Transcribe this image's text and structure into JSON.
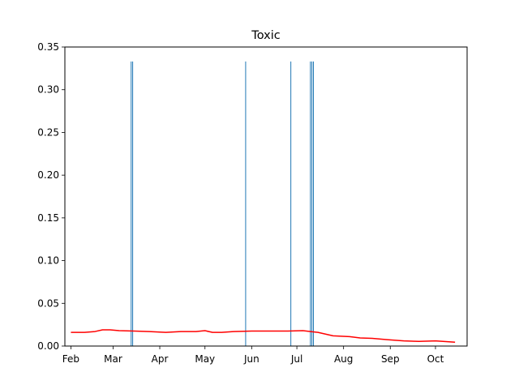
{
  "chart_data": {
    "type": "line",
    "title": "Toxic",
    "xlabel": "",
    "ylabel": "",
    "x_axis": {
      "type": "date",
      "min": "2021-01-28",
      "max": "2021-10-22",
      "ticks": [
        {
          "date": "2021-02-01",
          "label": "Feb"
        },
        {
          "date": "2021-03-01",
          "label": "Mar"
        },
        {
          "date": "2021-04-01",
          "label": "Apr"
        },
        {
          "date": "2021-05-01",
          "label": "May"
        },
        {
          "date": "2021-06-01",
          "label": "Jun"
        },
        {
          "date": "2021-07-01",
          "label": "Jul"
        },
        {
          "date": "2021-08-01",
          "label": "Aug"
        },
        {
          "date": "2021-09-01",
          "label": "Sep"
        },
        {
          "date": "2021-10-01",
          "label": "Oct"
        }
      ]
    },
    "ylim": [
      0,
      0.35
    ],
    "yticks": [
      0.0,
      0.05,
      0.1,
      0.15,
      0.2,
      0.25,
      0.3,
      0.35
    ],
    "ytick_labels": [
      "0.00",
      "0.05",
      "0.10",
      "0.15",
      "0.20",
      "0.25",
      "0.30",
      "0.35"
    ],
    "grid": false,
    "series": [
      {
        "kind": "bars",
        "color": "#1f77b4",
        "points": [
          {
            "x": "2021-03-13",
            "y": 0.333
          },
          {
            "x": "2021-03-14",
            "y": 0.333
          },
          {
            "x": "2021-05-28",
            "y": 0.333
          },
          {
            "x": "2021-06-27",
            "y": 0.333
          },
          {
            "x": "2021-07-10",
            "y": 0.333
          },
          {
            "x": "2021-07-11",
            "y": 0.333
          },
          {
            "x": "2021-07-12",
            "y": 0.333
          }
        ]
      },
      {
        "kind": "line",
        "color": "#ff0000",
        "points": [
          {
            "x": "2021-02-01",
            "y": 0.016
          },
          {
            "x": "2021-02-10",
            "y": 0.016
          },
          {
            "x": "2021-02-17",
            "y": 0.017
          },
          {
            "x": "2021-02-22",
            "y": 0.019
          },
          {
            "x": "2021-02-27",
            "y": 0.019
          },
          {
            "x": "2021-03-05",
            "y": 0.018
          },
          {
            "x": "2021-03-15",
            "y": 0.0175
          },
          {
            "x": "2021-03-25",
            "y": 0.017
          },
          {
            "x": "2021-04-05",
            "y": 0.016
          },
          {
            "x": "2021-04-15",
            "y": 0.017
          },
          {
            "x": "2021-04-25",
            "y": 0.017
          },
          {
            "x": "2021-05-01",
            "y": 0.018
          },
          {
            "x": "2021-05-06",
            "y": 0.016
          },
          {
            "x": "2021-05-12",
            "y": 0.016
          },
          {
            "x": "2021-05-20",
            "y": 0.017
          },
          {
            "x": "2021-06-01",
            "y": 0.0175
          },
          {
            "x": "2021-06-15",
            "y": 0.0175
          },
          {
            "x": "2021-06-25",
            "y": 0.0175
          },
          {
            "x": "2021-07-05",
            "y": 0.018
          },
          {
            "x": "2021-07-10",
            "y": 0.017
          },
          {
            "x": "2021-07-15",
            "y": 0.016
          },
          {
            "x": "2021-07-20",
            "y": 0.014
          },
          {
            "x": "2021-07-25",
            "y": 0.012
          },
          {
            "x": "2021-08-05",
            "y": 0.011
          },
          {
            "x": "2021-08-12",
            "y": 0.0095
          },
          {
            "x": "2021-08-20",
            "y": 0.009
          },
          {
            "x": "2021-08-30",
            "y": 0.0075
          },
          {
            "x": "2021-09-10",
            "y": 0.006
          },
          {
            "x": "2021-09-20",
            "y": 0.0055
          },
          {
            "x": "2021-10-01",
            "y": 0.006
          },
          {
            "x": "2021-10-10",
            "y": 0.005
          },
          {
            "x": "2021-10-14",
            "y": 0.0045
          }
        ]
      }
    ]
  }
}
